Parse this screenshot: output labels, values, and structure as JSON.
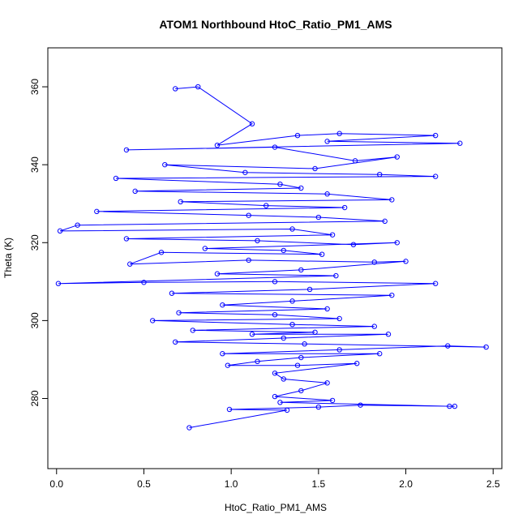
{
  "chart_data": {
    "type": "scatter",
    "title": "ATOM1 Northbound HtoC_Ratio_PM1_AMS",
    "xlabel": "HtoC_Ratio_PM1_AMS",
    "ylabel": "Theta (K)",
    "xlim": [
      -0.05,
      2.55
    ],
    "ylim": [
      262,
      370
    ],
    "x_ticks": [
      0.0,
      0.5,
      1.0,
      1.5,
      2.0,
      2.5
    ],
    "x_tick_labels": [
      "0.0",
      "0.5",
      "1.0",
      "1.5",
      "2.0",
      "2.5"
    ],
    "y_ticks": [
      280,
      300,
      320,
      340,
      360
    ],
    "y_tick_labels": [
      "280",
      "300",
      "320",
      "340",
      "360"
    ],
    "grid": false,
    "marker": "open-circle",
    "connected": true,
    "color": "#0000ff",
    "series": [
      {
        "points": [
          [
            0.68,
            359.5
          ],
          [
            0.81,
            360.0
          ],
          [
            1.12,
            350.5
          ],
          [
            0.92,
            345.0
          ],
          [
            1.38,
            347.5
          ],
          [
            1.62,
            348.0
          ],
          [
            2.17,
            347.5
          ],
          [
            1.55,
            346.0
          ],
          [
            2.31,
            345.5
          ],
          [
            0.4,
            343.8
          ],
          [
            1.25,
            344.5
          ],
          [
            1.71,
            341.0
          ],
          [
            1.95,
            342.0
          ],
          [
            1.48,
            339.0
          ],
          [
            0.62,
            340.0
          ],
          [
            1.08,
            338.0
          ],
          [
            1.85,
            337.5
          ],
          [
            2.17,
            337.0
          ],
          [
            0.34,
            336.5
          ],
          [
            1.28,
            335.0
          ],
          [
            1.4,
            334.0
          ],
          [
            0.45,
            333.2
          ],
          [
            1.55,
            332.5
          ],
          [
            1.92,
            331.0
          ],
          [
            0.71,
            330.5
          ],
          [
            1.2,
            329.5
          ],
          [
            1.65,
            329.0
          ],
          [
            0.23,
            328.0
          ],
          [
            1.1,
            327.0
          ],
          [
            1.5,
            326.5
          ],
          [
            1.88,
            325.5
          ],
          [
            0.12,
            324.5
          ],
          [
            0.02,
            323.0
          ],
          [
            1.35,
            323.5
          ],
          [
            1.58,
            322.0
          ],
          [
            0.4,
            321.0
          ],
          [
            1.15,
            320.5
          ],
          [
            1.7,
            319.5
          ],
          [
            1.95,
            320.0
          ],
          [
            0.85,
            318.5
          ],
          [
            1.3,
            318.0
          ],
          [
            1.52,
            317.0
          ],
          [
            0.6,
            317.5
          ],
          [
            0.42,
            314.5
          ],
          [
            1.1,
            315.5
          ],
          [
            1.82,
            315.0
          ],
          [
            2.0,
            315.2
          ],
          [
            1.4,
            313.0
          ],
          [
            0.92,
            312.0
          ],
          [
            1.6,
            311.5
          ],
          [
            0.01,
            309.5
          ],
          [
            0.5,
            309.8
          ],
          [
            1.25,
            310.0
          ],
          [
            2.17,
            309.5
          ],
          [
            1.45,
            308.0
          ],
          [
            0.66,
            307.0
          ],
          [
            1.92,
            306.5
          ],
          [
            1.35,
            305.0
          ],
          [
            0.95,
            304.0
          ],
          [
            1.55,
            303.0
          ],
          [
            0.7,
            302.0
          ],
          [
            1.25,
            301.5
          ],
          [
            1.62,
            300.5
          ],
          [
            0.55,
            300.0
          ],
          [
            1.35,
            299.0
          ],
          [
            1.82,
            298.5
          ],
          [
            0.78,
            297.5
          ],
          [
            1.48,
            297.0
          ],
          [
            1.12,
            296.5
          ],
          [
            1.9,
            296.5
          ],
          [
            1.3,
            295.5
          ],
          [
            0.68,
            294.5
          ],
          [
            1.42,
            294.0
          ],
          [
            2.46,
            293.2
          ],
          [
            2.24,
            293.5
          ],
          [
            1.62,
            292.5
          ],
          [
            0.95,
            291.5
          ],
          [
            1.85,
            291.5
          ],
          [
            1.4,
            290.5
          ],
          [
            1.15,
            289.5
          ],
          [
            0.98,
            288.5
          ],
          [
            1.38,
            288.5
          ],
          [
            1.72,
            289.0
          ],
          [
            1.25,
            286.5
          ],
          [
            1.3,
            285.0
          ],
          [
            1.55,
            284.0
          ],
          [
            1.4,
            282.0
          ],
          [
            1.25,
            280.5
          ],
          [
            1.58,
            279.5
          ],
          [
            1.28,
            279.0
          ],
          [
            2.25,
            278.0
          ],
          [
            2.28,
            278.0
          ],
          [
            1.74,
            278.3
          ],
          [
            1.5,
            277.8
          ],
          [
            0.99,
            277.2
          ],
          [
            1.32,
            277.0
          ],
          [
            0.76,
            272.5
          ]
        ]
      }
    ]
  }
}
